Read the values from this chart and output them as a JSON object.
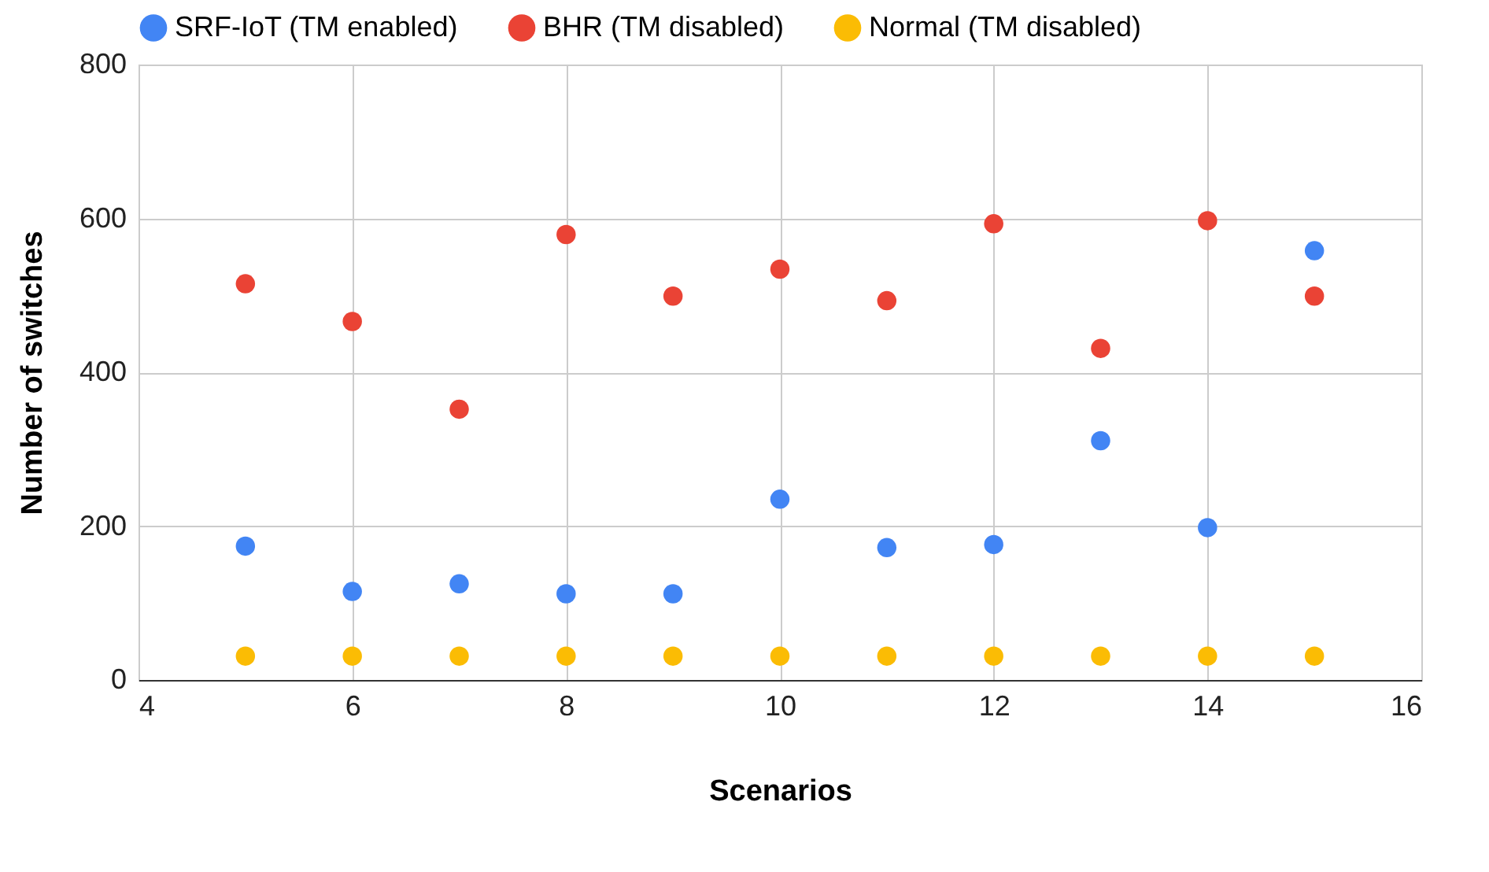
{
  "chart_data": {
    "type": "scatter",
    "xlabel": "Scenarios",
    "ylabel": "Number of switches",
    "x": [
      5,
      6,
      7,
      8,
      9,
      10,
      11,
      12,
      13,
      14,
      15
    ],
    "series": [
      {
        "name": "SRF-IoT (TM enabled)",
        "color": "#4285f4",
        "values": [
          174,
          115,
          125,
          112,
          112,
          235,
          172,
          176,
          311,
          198,
          558
        ]
      },
      {
        "name": "BHR (TM disabled)",
        "color": "#ea4335",
        "values": [
          515,
          466,
          352,
          579,
          499,
          534,
          493,
          593,
          431,
          597,
          499
        ]
      },
      {
        "name": "Normal (TM disabled)",
        "color": "#fbbc04",
        "values": [
          31,
          31,
          31,
          31,
          31,
          31,
          31,
          31,
          31,
          31,
          31
        ]
      }
    ],
    "xlim": [
      4,
      16
    ],
    "xticks": [
      4,
      6,
      8,
      10,
      12,
      14,
      16
    ],
    "ylim": [
      0,
      800
    ],
    "yticks": [
      0,
      200,
      400,
      600,
      800
    ],
    "grid": true,
    "legend": "top left",
    "marker": "circle"
  }
}
